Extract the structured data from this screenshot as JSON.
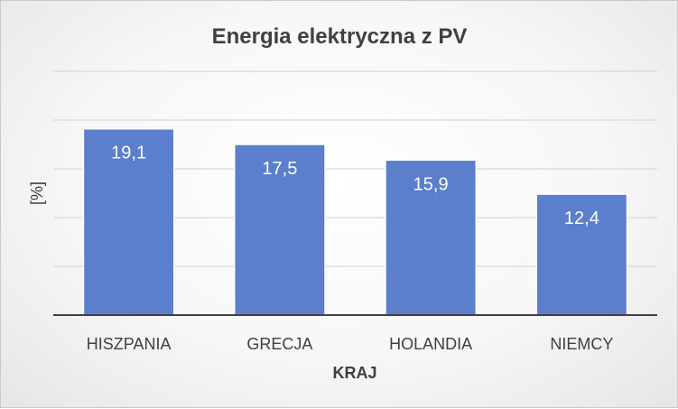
{
  "chart_data": {
    "type": "bar",
    "title": "Energia elektryczna z PV",
    "xlabel": "KRAJ",
    "ylabel": "[%]",
    "categories": [
      "HISZPANIA",
      "GRECJA",
      "HOLANDIA",
      "NIEMCY"
    ],
    "values": [
      19.1,
      17.5,
      15.9,
      12.4
    ],
    "data_labels": [
      "19,1",
      "17,5",
      "15,9",
      "12,4"
    ],
    "ylim": [
      0,
      25
    ],
    "grid": true,
    "y_tick_labels_visible": false,
    "legend": "none",
    "colors": {
      "bar": "#5b7fcc",
      "bar_border": "#ffffff",
      "grid": "#d0d0d0",
      "axis": "#404040",
      "text": "#404040",
      "data_label": "#ffffff"
    }
  }
}
